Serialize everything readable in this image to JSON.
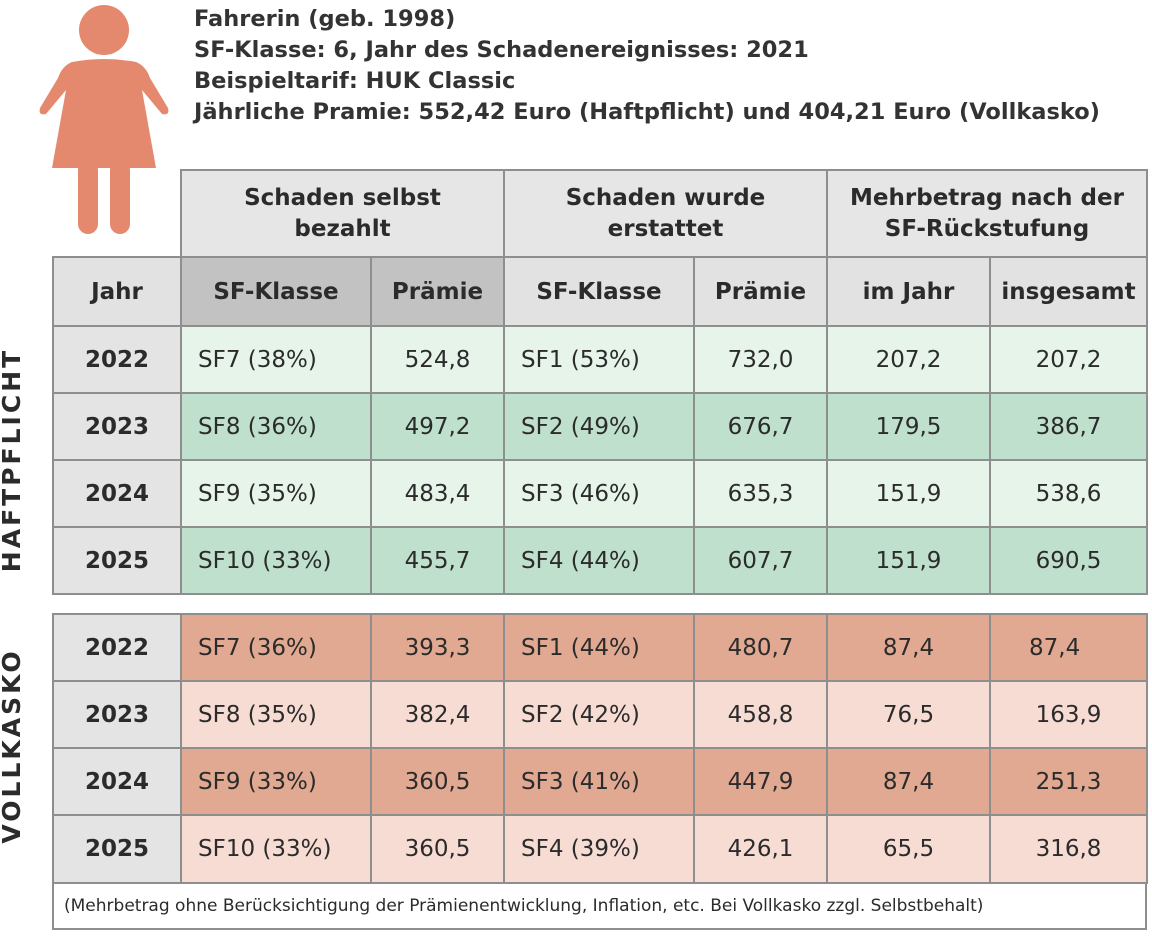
{
  "person_icon": "female-person-icon",
  "colors": {
    "icon": "#e5896e",
    "haftpflicht_light": "#e6f4ea",
    "haftpflicht_dark": "#bfe0cc",
    "vollkasko_dark": "#e2a992",
    "vollkasko_light": "#f7dcd3"
  },
  "info": {
    "line1": "Fahrerin (geb. 1998)",
    "line2": "SF-Klasse: 6, Jahr des Schadenereignisses: 2021",
    "line3": "Beispieltarif: HUK Classic",
    "line4": "Jährliche Pramie: 552,42 Euro (Haftpflicht) und 404,21 Euro (Vollkasko)"
  },
  "table": {
    "groups": {
      "self_paid": "Schaden selbst bezahlt",
      "reimbursed": "Schaden wurde erstattet",
      "extra": "Mehrbetrag nach der SF-Rückstufung"
    },
    "columns": {
      "year": "Jahr",
      "sf_class_1": "SF-Klasse",
      "premium_1": "Prämie",
      "sf_class_2": "SF-Klasse",
      "premium_2": "Prämie",
      "per_year": "im Jahr",
      "total": "insgesamt"
    },
    "haftpflicht_label": "HAFTPFLICHT",
    "vollkasko_label": "VOLLKASKO",
    "haftpflicht": [
      {
        "year": "2022",
        "sf1": "SF7 (38%)",
        "p1": "524,8",
        "sf2": "SF1 (53%)",
        "p2": "732,0",
        "per_year": "207,2",
        "total": "207,2"
      },
      {
        "year": "2023",
        "sf1": "SF8 (36%)",
        "p1": "497,2",
        "sf2": "SF2 (49%)",
        "p2": "676,7",
        "per_year": "179,5",
        "total": "386,7"
      },
      {
        "year": "2024",
        "sf1": "SF9 (35%)",
        "p1": "483,4",
        "sf2": "SF3 (46%)",
        "p2": "635,3",
        "per_year": "151,9",
        "total": "538,6"
      },
      {
        "year": "2025",
        "sf1": "SF10 (33%)",
        "p1": "455,7",
        "sf2": "SF4 (44%)",
        "p2": "607,7",
        "per_year": "151,9",
        "total": "690,5"
      }
    ],
    "vollkasko": [
      {
        "year": "2022",
        "sf1": "SF7 (36%)",
        "p1": "393,3",
        "sf2": "SF1 (44%)",
        "p2": "480,7",
        "per_year": "87,4",
        "total": "87,4"
      },
      {
        "year": "2023",
        "sf1": "SF8 (35%)",
        "p1": "382,4",
        "sf2": "SF2 (42%)",
        "p2": "458,8",
        "per_year": "76,5",
        "total": "163,9"
      },
      {
        "year": "2024",
        "sf1": "SF9 (33%)",
        "p1": "360,5",
        "sf2": "SF3 (41%)",
        "p2": "447,9",
        "per_year": "87,4",
        "total": "251,3"
      },
      {
        "year": "2025",
        "sf1": "SF10 (33%)",
        "p1": "360,5",
        "sf2": "SF4 (39%)",
        "p2": "426,1",
        "per_year": "65,5",
        "total": "316,8"
      }
    ]
  },
  "footnote": "(Mehrbetrag ohne Berücksichtigung der Prämienentwicklung, Inflation, etc. Bei Vollkasko zzgl. Selbstbehalt)"
}
